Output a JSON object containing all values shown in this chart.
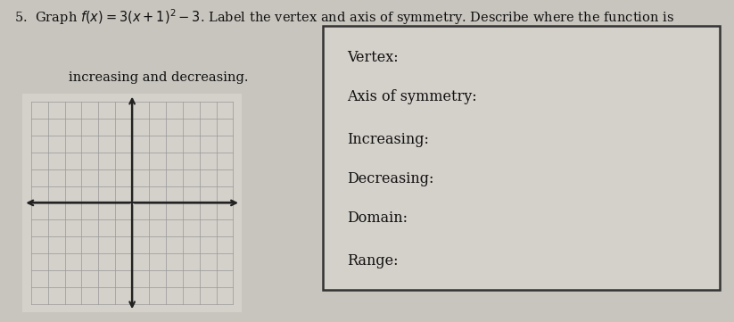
{
  "bg_color": "#c8c5be",
  "grid_bg_color": "#d4d0ca",
  "box_bg_color": "#d4d0ca",
  "grid_line_color": "#999999",
  "axis_color": "#222222",
  "text_color": "#111111",
  "box_border_color": "#333333",
  "title_line1": "5.  Graph $f(x) = 3(x+1)^2 - 3$. Label the vertex and axis of symmetry. Describe where the function is",
  "title_line2": "increasing and decreasing.",
  "box_labels": [
    "Vertex:",
    "Axis of symmetry:",
    "Increasing:",
    "Decreasing:",
    "Domain:",
    "Range:"
  ],
  "grid_rows": 12,
  "grid_cols": 12,
  "font_size_title": 10.5,
  "font_size_labels": 11.5,
  "fig_width": 8.23,
  "fig_height": 3.61
}
